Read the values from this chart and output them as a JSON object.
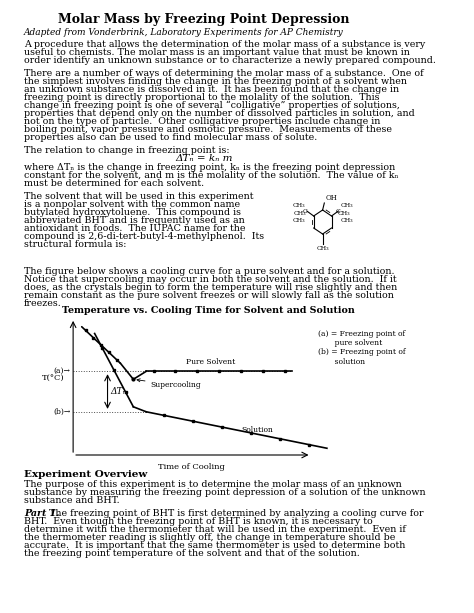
{
  "title": "Molar Mass by Freezing Point Depression",
  "subtitle": "Adapted from Vonderbrink, Laboratory Experiments for AP Chemistry",
  "para1": "A procedure that allows the determination of the molar mass of a substance is very useful to chemists. The molar mass is an important value that must be known in order identify an unknown substance or to characterize a newly prepared compound.",
  "para2": "There are a number of ways of determining the molar mass of a substance.  One of the simplest involves finding the change in the freezing point of a solvent when an unknown substance is dissolved in it.  It has been found that the change in freezing point is directly proportional to the molality of the solution.  This change in freezing point is one of several “colligative” properties of solutions, properties that depend only on the number of dissolved particles in solution, and not on the type of particle.  Other colligative properties include change in boiling point, vapor pressure and osmotic pressure.  Measurements of these properties also can be used to find molecular mass of solute.",
  "para3_pre": "The relation to change in freezing point is:",
  "para3_formula": "ΔTₙ = kₙ m",
  "para3_post": "where ΔTₙ is the change in freezing point, kₙ is the freezing point depression constant for the solvent, and m is the molality of the solution.  The value of kₙ must be determined for each solvent.",
  "para4": "The solvent that will be used in this experiment is a nonpolar solvent with the common name butylated hydroxytoluene.  This compound is abbreviated BHT and is frequently used as an antioxidant in foods.  The IUPAC name for the compound is 2,6-di-tert-butyl-4-methylphenol.  Its structural formula is:",
  "para5": "The figure below shows a cooling curve for a pure solvent and for a solution. Notice that supercooling may occur in both the solvent and the solution.  If it does, as the crystals begin to form the temperature will rise slightly and then remain constant as the pure solvent freezes or will slowly fall as the solution freezes.",
  "graph_title": "Temperature vs. Cooling Time for Solvent and Solution",
  "exp_overview_title": "Experiment Overview",
  "exp_overview": "The purpose of this experiment is to determine the molar mass of an unknown substance by measuring the freezing point depression of a solution of the unknown substance and BHT.",
  "part1_label": "Part 1.",
  "part1_text": " The freezing point of BHT is first determined by analyzing a cooling curve for BHT.  Even though the freezing point of BHT is known, it is necessary to determine it with the thermometer that will be used in the experiment.  Even if the thermometer reading is slightly off, the change in temperature should be accurate.  It is important that the same thermometer is used to determine both the freezing point temperature of the solvent and that of the solution.",
  "background_color": "#ffffff",
  "text_color": "#000000",
  "font_size_title": 9,
  "font_size_body": 7.5
}
